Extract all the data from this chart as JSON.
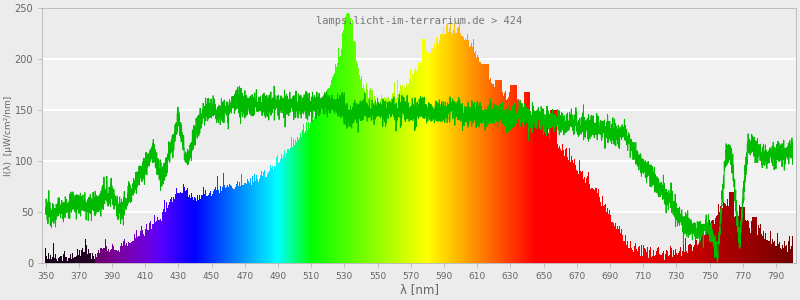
{
  "title": "lamps.licht-im-terrarium.de > 424",
  "xlabel": "λ [nm]",
  "ylabel": "I(λ)  [μW/cm²/nm]",
  "xlim": [
    348,
    802
  ],
  "ylim": [
    0,
    250
  ],
  "yticks": [
    0,
    50,
    100,
    150,
    200,
    250
  ],
  "xticks": [
    350,
    370,
    390,
    410,
    430,
    450,
    470,
    490,
    510,
    530,
    550,
    570,
    590,
    610,
    630,
    650,
    670,
    690,
    710,
    730,
    750,
    770,
    790
  ],
  "background_color": "#ececec",
  "title_color": "#777777",
  "grid_color": "#ffffff",
  "axis_label_color": "#666666",
  "tick_color": "#666666"
}
